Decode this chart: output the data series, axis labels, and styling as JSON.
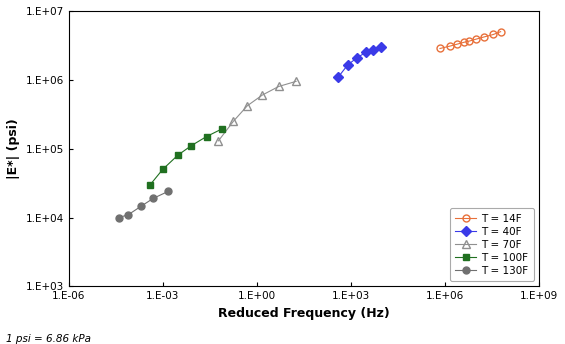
{
  "title": "",
  "xlabel": "Reduced Frequency (Hz)",
  "ylabel": "|E*| (psi)",
  "footnote": "1 psi = 6.86 kPa",
  "xlim_log": [
    -6,
    9
  ],
  "ylim_log": [
    3,
    7
  ],
  "series": [
    {
      "label": "T = 14F",
      "color": "#E8703A",
      "marker": "o",
      "markersize": 5,
      "linestyle": "-",
      "filled": false,
      "x": [
        700000.0,
        1500000.0,
        2500000.0,
        4000000.0,
        6000000.0,
        10000000.0,
        18000000.0,
        35000000.0,
        60000000.0
      ],
      "y": [
        2850000.0,
        3100000.0,
        3300000.0,
        3500000.0,
        3650000.0,
        3900000.0,
        4200000.0,
        4550000.0,
        5000000.0
      ]
    },
    {
      "label": "T = 40F",
      "color": "#3A3AE8",
      "marker": "D",
      "markersize": 5,
      "linestyle": "-",
      "filled": true,
      "x": [
        400.0,
        800.0,
        1600.0,
        3000.0,
        5000.0,
        9000.0
      ],
      "y": [
        1100000.0,
        1650000.0,
        2100000.0,
        2500000.0,
        2750000.0,
        3000000.0
      ]
    },
    {
      "label": "T = 70F",
      "color": "#909090",
      "marker": "^",
      "markersize": 6,
      "linestyle": "-",
      "filled": false,
      "x": [
        0.06,
        0.18,
        0.5,
        1.5,
        5,
        18
      ],
      "y": [
        130000.0,
        250000.0,
        420000.0,
        600000.0,
        800000.0,
        950000.0
      ]
    },
    {
      "label": "T = 100F",
      "color": "#207020",
      "marker": "s",
      "markersize": 5,
      "linestyle": "-",
      "filled": true,
      "x": [
        0.0004,
        0.001,
        0.003,
        0.008,
        0.025,
        0.08
      ],
      "y": [
        30000.0,
        50000.0,
        80000.0,
        110000.0,
        150000.0,
        195000.0
      ]
    },
    {
      "label": "T = 130F",
      "color": "#707070",
      "marker": "o",
      "markersize": 5,
      "linestyle": "-",
      "filled": true,
      "x": [
        4e-05,
        8e-05,
        0.0002,
        0.0005,
        0.0015
      ],
      "y": [
        10000.0,
        11000.0,
        14500.0,
        19000.0,
        24000.0
      ]
    }
  ]
}
